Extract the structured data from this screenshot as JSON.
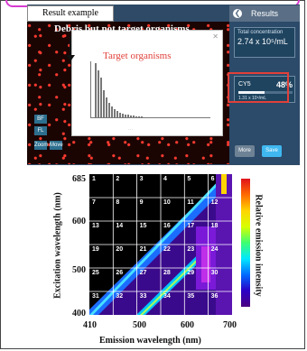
{
  "screenshot": {
    "tab_label": "Result example",
    "debris_label": "Debris but not target organisms",
    "target_label": "Target organisms",
    "left_buttons": [
      "BF",
      "FL",
      "Zoom",
      "Move"
    ],
    "sidebar": {
      "header": "Results",
      "total_label": "Total concentration",
      "total_value": "2.74 x 10⁵/mL",
      "cyc_label": "CY5",
      "cyc_percent": "48%",
      "cyc_fraction": 0.48,
      "cyc_sub": "1.31 x 10⁵/mL",
      "more_button": "More",
      "save_button": "Save"
    }
  },
  "chart_data": {
    "type": "heatmap",
    "xlabel": "Emission wavelength (nm)",
    "ylabel": "Excitation wavelength (nm)",
    "colorbar_label": "Relative emission intensity",
    "x_ticks": [
      "410",
      "500",
      "600",
      "700"
    ],
    "y_ticks": [
      "685",
      "600",
      "500",
      "400"
    ],
    "xlim": [
      410,
      700
    ],
    "ylim": [
      400,
      685
    ],
    "grid_numbers": [
      "1",
      "2",
      "3",
      "4",
      "5",
      "6",
      "7",
      "8",
      "9",
      "10",
      "11",
      "12",
      "13",
      "14",
      "15",
      "16",
      "17",
      "18",
      "19",
      "20",
      "21",
      "22",
      "23",
      "24",
      "25",
      "26",
      "27",
      "28",
      "29",
      "30",
      "31",
      "32",
      "33",
      "34",
      "35",
      "36"
    ],
    "colorbar_colors": [
      "#e0131b",
      "#ff6a00",
      "#ffd400",
      "#d8ff00",
      "#3eff70",
      "#00e8ff",
      "#006bff",
      "#2b00c6",
      "#4a0080"
    ]
  }
}
